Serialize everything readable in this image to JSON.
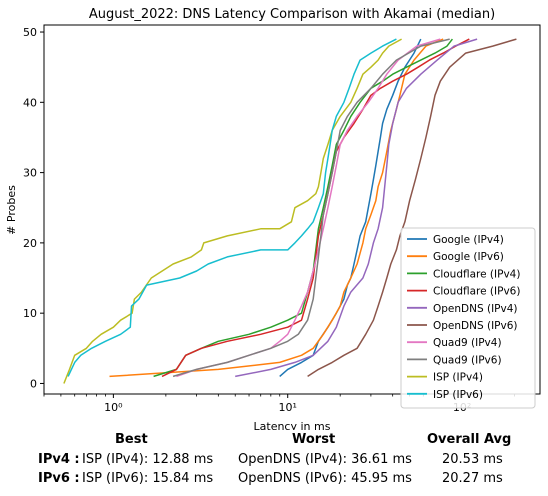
{
  "chart_data": {
    "type": "line",
    "title": "August_2022: DNS Latency Comparison with Akamai (median)",
    "xlabel": "Latency in ms",
    "ylabel": "# Probes",
    "xscale": "log",
    "xlim": [
      0.4,
      280
    ],
    "ylim": [
      -1.5,
      51
    ],
    "xticks": [
      {
        "value": 1,
        "label": "10⁰"
      },
      {
        "value": 10,
        "label": "10¹"
      },
      {
        "value": 100,
        "label": "10²"
      }
    ],
    "yticks": [
      0,
      10,
      20,
      30,
      40,
      50
    ],
    "grid": false,
    "legend_position": "lower right",
    "series": [
      {
        "name": "Google (IPv4)",
        "color": "#1f77b4",
        "points": [
          [
            9,
            1
          ],
          [
            10,
            2
          ],
          [
            12,
            3
          ],
          [
            14,
            4
          ],
          [
            15,
            6
          ],
          [
            17,
            8
          ],
          [
            19,
            10
          ],
          [
            21,
            12
          ],
          [
            22,
            14
          ],
          [
            23,
            15
          ],
          [
            24,
            17
          ],
          [
            25,
            19
          ],
          [
            26,
            21
          ],
          [
            28,
            23
          ],
          [
            29,
            25
          ],
          [
            30,
            27
          ],
          [
            31,
            29
          ],
          [
            32,
            31
          ],
          [
            33,
            33
          ],
          [
            34,
            35
          ],
          [
            35,
            37
          ],
          [
            37,
            39
          ],
          [
            40,
            41
          ],
          [
            43,
            43
          ],
          [
            47,
            45
          ],
          [
            53,
            47
          ],
          [
            58,
            49
          ]
        ]
      },
      {
        "name": "Google (IPv6)",
        "color": "#ff7f0e",
        "points": [
          [
            0.95,
            1
          ],
          [
            4,
            2
          ],
          [
            9,
            3
          ],
          [
            12,
            4
          ],
          [
            14,
            5
          ],
          [
            16,
            7
          ],
          [
            18,
            9
          ],
          [
            20,
            11
          ],
          [
            21,
            13
          ],
          [
            23,
            15
          ],
          [
            25,
            17
          ],
          [
            27,
            20
          ],
          [
            28,
            22
          ],
          [
            30,
            24
          ],
          [
            32,
            26
          ],
          [
            33,
            28
          ],
          [
            35,
            30
          ],
          [
            37,
            33
          ],
          [
            39,
            36
          ],
          [
            42,
            39
          ],
          [
            44,
            41
          ],
          [
            47,
            44
          ],
          [
            53,
            46
          ],
          [
            62,
            48
          ],
          [
            78,
            49
          ]
        ]
      },
      {
        "name": "Cloudflare (IPv4)",
        "color": "#2ca02c",
        "points": [
          [
            1.7,
            1
          ],
          [
            2.3,
            2
          ],
          [
            2.6,
            4
          ],
          [
            3.2,
            5
          ],
          [
            4,
            6
          ],
          [
            6,
            7
          ],
          [
            8,
            8
          ],
          [
            10,
            9
          ],
          [
            12,
            10
          ],
          [
            13,
            13
          ],
          [
            14,
            16
          ],
          [
            14.5,
            19
          ],
          [
            15,
            22
          ],
          [
            16,
            25
          ],
          [
            17,
            28
          ],
          [
            18,
            31
          ],
          [
            19,
            34
          ],
          [
            21,
            36
          ],
          [
            23,
            38
          ],
          [
            26,
            40
          ],
          [
            30,
            42
          ],
          [
            35,
            43
          ],
          [
            40,
            44
          ],
          [
            48,
            45
          ],
          [
            58,
            46
          ],
          [
            70,
            47
          ],
          [
            82,
            48
          ],
          [
            88,
            49
          ]
        ]
      },
      {
        "name": "Cloudflare (IPv6)",
        "color": "#d62728",
        "points": [
          [
            1.9,
            1
          ],
          [
            2.3,
            2
          ],
          [
            2.6,
            4
          ],
          [
            3.2,
            5
          ],
          [
            4.5,
            6
          ],
          [
            7,
            7
          ],
          [
            10,
            8
          ],
          [
            12,
            9
          ],
          [
            13,
            12
          ],
          [
            14,
            15
          ],
          [
            14.5,
            18
          ],
          [
            15,
            21
          ],
          [
            16,
            24
          ],
          [
            17,
            27
          ],
          [
            18,
            30
          ],
          [
            19,
            33
          ],
          [
            21,
            35
          ],
          [
            24,
            37
          ],
          [
            27,
            39
          ],
          [
            30,
            41
          ],
          [
            34,
            42
          ],
          [
            40,
            43
          ],
          [
            48,
            44
          ],
          [
            56,
            45
          ],
          [
            65,
            46
          ],
          [
            78,
            47
          ],
          [
            92,
            48
          ],
          [
            110,
            49
          ]
        ]
      },
      {
        "name": "OpenDNS (IPv4)",
        "color": "#9467bd",
        "points": [
          [
            5,
            1
          ],
          [
            8,
            2
          ],
          [
            11,
            3
          ],
          [
            14,
            4
          ],
          [
            17,
            6
          ],
          [
            19,
            8
          ],
          [
            21,
            11
          ],
          [
            23,
            13
          ],
          [
            27,
            15
          ],
          [
            29,
            17
          ],
          [
            31,
            20
          ],
          [
            33,
            22
          ],
          [
            35,
            25
          ],
          [
            36,
            28
          ],
          [
            37,
            31
          ],
          [
            38,
            34
          ],
          [
            40,
            37
          ],
          [
            43,
            40
          ],
          [
            48,
            42
          ],
          [
            58,
            44
          ],
          [
            72,
            46
          ],
          [
            90,
            48
          ],
          [
            122,
            49
          ]
        ]
      },
      {
        "name": "OpenDNS (IPv6)",
        "color": "#8c564b",
        "points": [
          [
            13,
            1
          ],
          [
            15,
            2
          ],
          [
            18,
            3
          ],
          [
            21,
            4
          ],
          [
            25,
            5
          ],
          [
            28,
            7
          ],
          [
            31,
            9
          ],
          [
            33,
            11
          ],
          [
            35,
            13
          ],
          [
            37,
            15
          ],
          [
            39,
            17
          ],
          [
            42,
            19
          ],
          [
            44,
            21
          ],
          [
            47,
            23
          ],
          [
            50,
            26
          ],
          [
            54,
            29
          ],
          [
            58,
            32
          ],
          [
            62,
            35
          ],
          [
            66,
            38
          ],
          [
            70,
            41
          ],
          [
            75,
            43
          ],
          [
            85,
            45
          ],
          [
            105,
            47
          ],
          [
            150,
            48
          ],
          [
            205,
            49
          ]
        ]
      },
      {
        "name": "Quad9 (IPv4)",
        "color": "#e377c2",
        "points": [
          [
            2.3,
            1
          ],
          [
            3,
            2
          ],
          [
            4.5,
            3
          ],
          [
            6,
            4
          ],
          [
            8,
            5
          ],
          [
            9,
            6
          ],
          [
            10,
            7
          ],
          [
            11,
            9
          ],
          [
            12,
            11
          ],
          [
            13,
            13
          ],
          [
            14,
            16
          ],
          [
            15,
            19
          ],
          [
            16,
            22
          ],
          [
            17,
            25
          ],
          [
            18,
            28
          ],
          [
            19,
            31
          ],
          [
            20,
            34
          ],
          [
            22,
            36
          ],
          [
            25,
            38
          ],
          [
            29,
            40
          ],
          [
            33,
            42
          ],
          [
            37,
            44
          ],
          [
            43,
            46
          ],
          [
            55,
            48
          ],
          [
            75,
            49
          ]
        ]
      },
      {
        "name": "Quad9 (IPv6)",
        "color": "#7f7f7f",
        "points": [
          [
            2.2,
            1
          ],
          [
            3,
            2
          ],
          [
            4.5,
            3
          ],
          [
            6,
            4
          ],
          [
            8,
            5
          ],
          [
            10,
            6
          ],
          [
            11.5,
            7
          ],
          [
            13,
            9
          ],
          [
            14,
            12
          ],
          [
            14.5,
            15
          ],
          [
            15,
            18
          ],
          [
            15.5,
            21
          ],
          [
            16,
            24
          ],
          [
            17,
            27
          ],
          [
            18,
            30
          ],
          [
            19,
            33
          ],
          [
            20,
            36
          ],
          [
            22,
            38
          ],
          [
            25,
            40
          ],
          [
            30,
            42
          ],
          [
            35,
            44
          ],
          [
            42,
            46
          ],
          [
            58,
            48
          ],
          [
            85,
            49
          ]
        ]
      },
      {
        "name": "ISP (IPv4)",
        "color": "#bcbd22",
        "points": [
          [
            0.52,
            0
          ],
          [
            0.56,
            2
          ],
          [
            0.6,
            4
          ],
          [
            0.7,
            5
          ],
          [
            0.76,
            6
          ],
          [
            0.85,
            7
          ],
          [
            1,
            8
          ],
          [
            1.1,
            9
          ],
          [
            1.28,
            10
          ],
          [
            1.32,
            12
          ],
          [
            1.45,
            13
          ],
          [
            1.65,
            15
          ],
          [
            2.2,
            17
          ],
          [
            2.8,
            18
          ],
          [
            3.2,
            19
          ],
          [
            3.3,
            20
          ],
          [
            4.5,
            21
          ],
          [
            7,
            22
          ],
          [
            9,
            22
          ],
          [
            10.5,
            23
          ],
          [
            11,
            25
          ],
          [
            13,
            26
          ],
          [
            14.5,
            27
          ],
          [
            15,
            28
          ],
          [
            15.5,
            30
          ],
          [
            16,
            32
          ],
          [
            17,
            34
          ],
          [
            18,
            36
          ],
          [
            20,
            38
          ],
          [
            23,
            40
          ],
          [
            25,
            42
          ],
          [
            27,
            44
          ],
          [
            30,
            45
          ],
          [
            33,
            46
          ],
          [
            35,
            47
          ],
          [
            38,
            48
          ],
          [
            45,
            49
          ]
        ]
      },
      {
        "name": "ISP (IPv6)",
        "color": "#17becf",
        "points": [
          [
            0.55,
            1
          ],
          [
            0.6,
            3
          ],
          [
            0.65,
            4
          ],
          [
            0.75,
            5
          ],
          [
            0.9,
            6
          ],
          [
            1.1,
            7
          ],
          [
            1.25,
            8
          ],
          [
            1.27,
            11
          ],
          [
            1.4,
            12
          ],
          [
            1.55,
            14
          ],
          [
            2.4,
            15
          ],
          [
            3,
            16
          ],
          [
            3.5,
            17
          ],
          [
            4.5,
            18
          ],
          [
            7,
            19
          ],
          [
            10,
            19
          ],
          [
            11,
            20
          ],
          [
            12,
            21
          ],
          [
            13,
            22
          ],
          [
            14,
            23
          ],
          [
            15,
            25
          ],
          [
            16,
            27
          ],
          [
            16.5,
            30
          ],
          [
            17,
            32
          ],
          [
            17.5,
            34
          ],
          [
            18,
            36
          ],
          [
            19,
            38
          ],
          [
            21,
            40
          ],
          [
            22.5,
            42
          ],
          [
            24,
            44
          ],
          [
            26,
            46
          ],
          [
            30,
            47
          ],
          [
            35,
            48
          ],
          [
            42,
            49
          ]
        ]
      }
    ]
  },
  "summary": {
    "headers": {
      "best": "Best",
      "worst": "Worst",
      "avg": "Overall Avg"
    },
    "rows": [
      {
        "label": "IPv4 :",
        "best": "ISP (IPv4): 12.88 ms",
        "worst": "OpenDNS (IPv4): 36.61 ms",
        "avg": "20.53 ms"
      },
      {
        "label": "IPv6 :",
        "best": "ISP (IPv6): 15.84 ms",
        "worst": "OpenDNS (IPv6): 45.95 ms",
        "avg": "20.27 ms"
      }
    ]
  }
}
